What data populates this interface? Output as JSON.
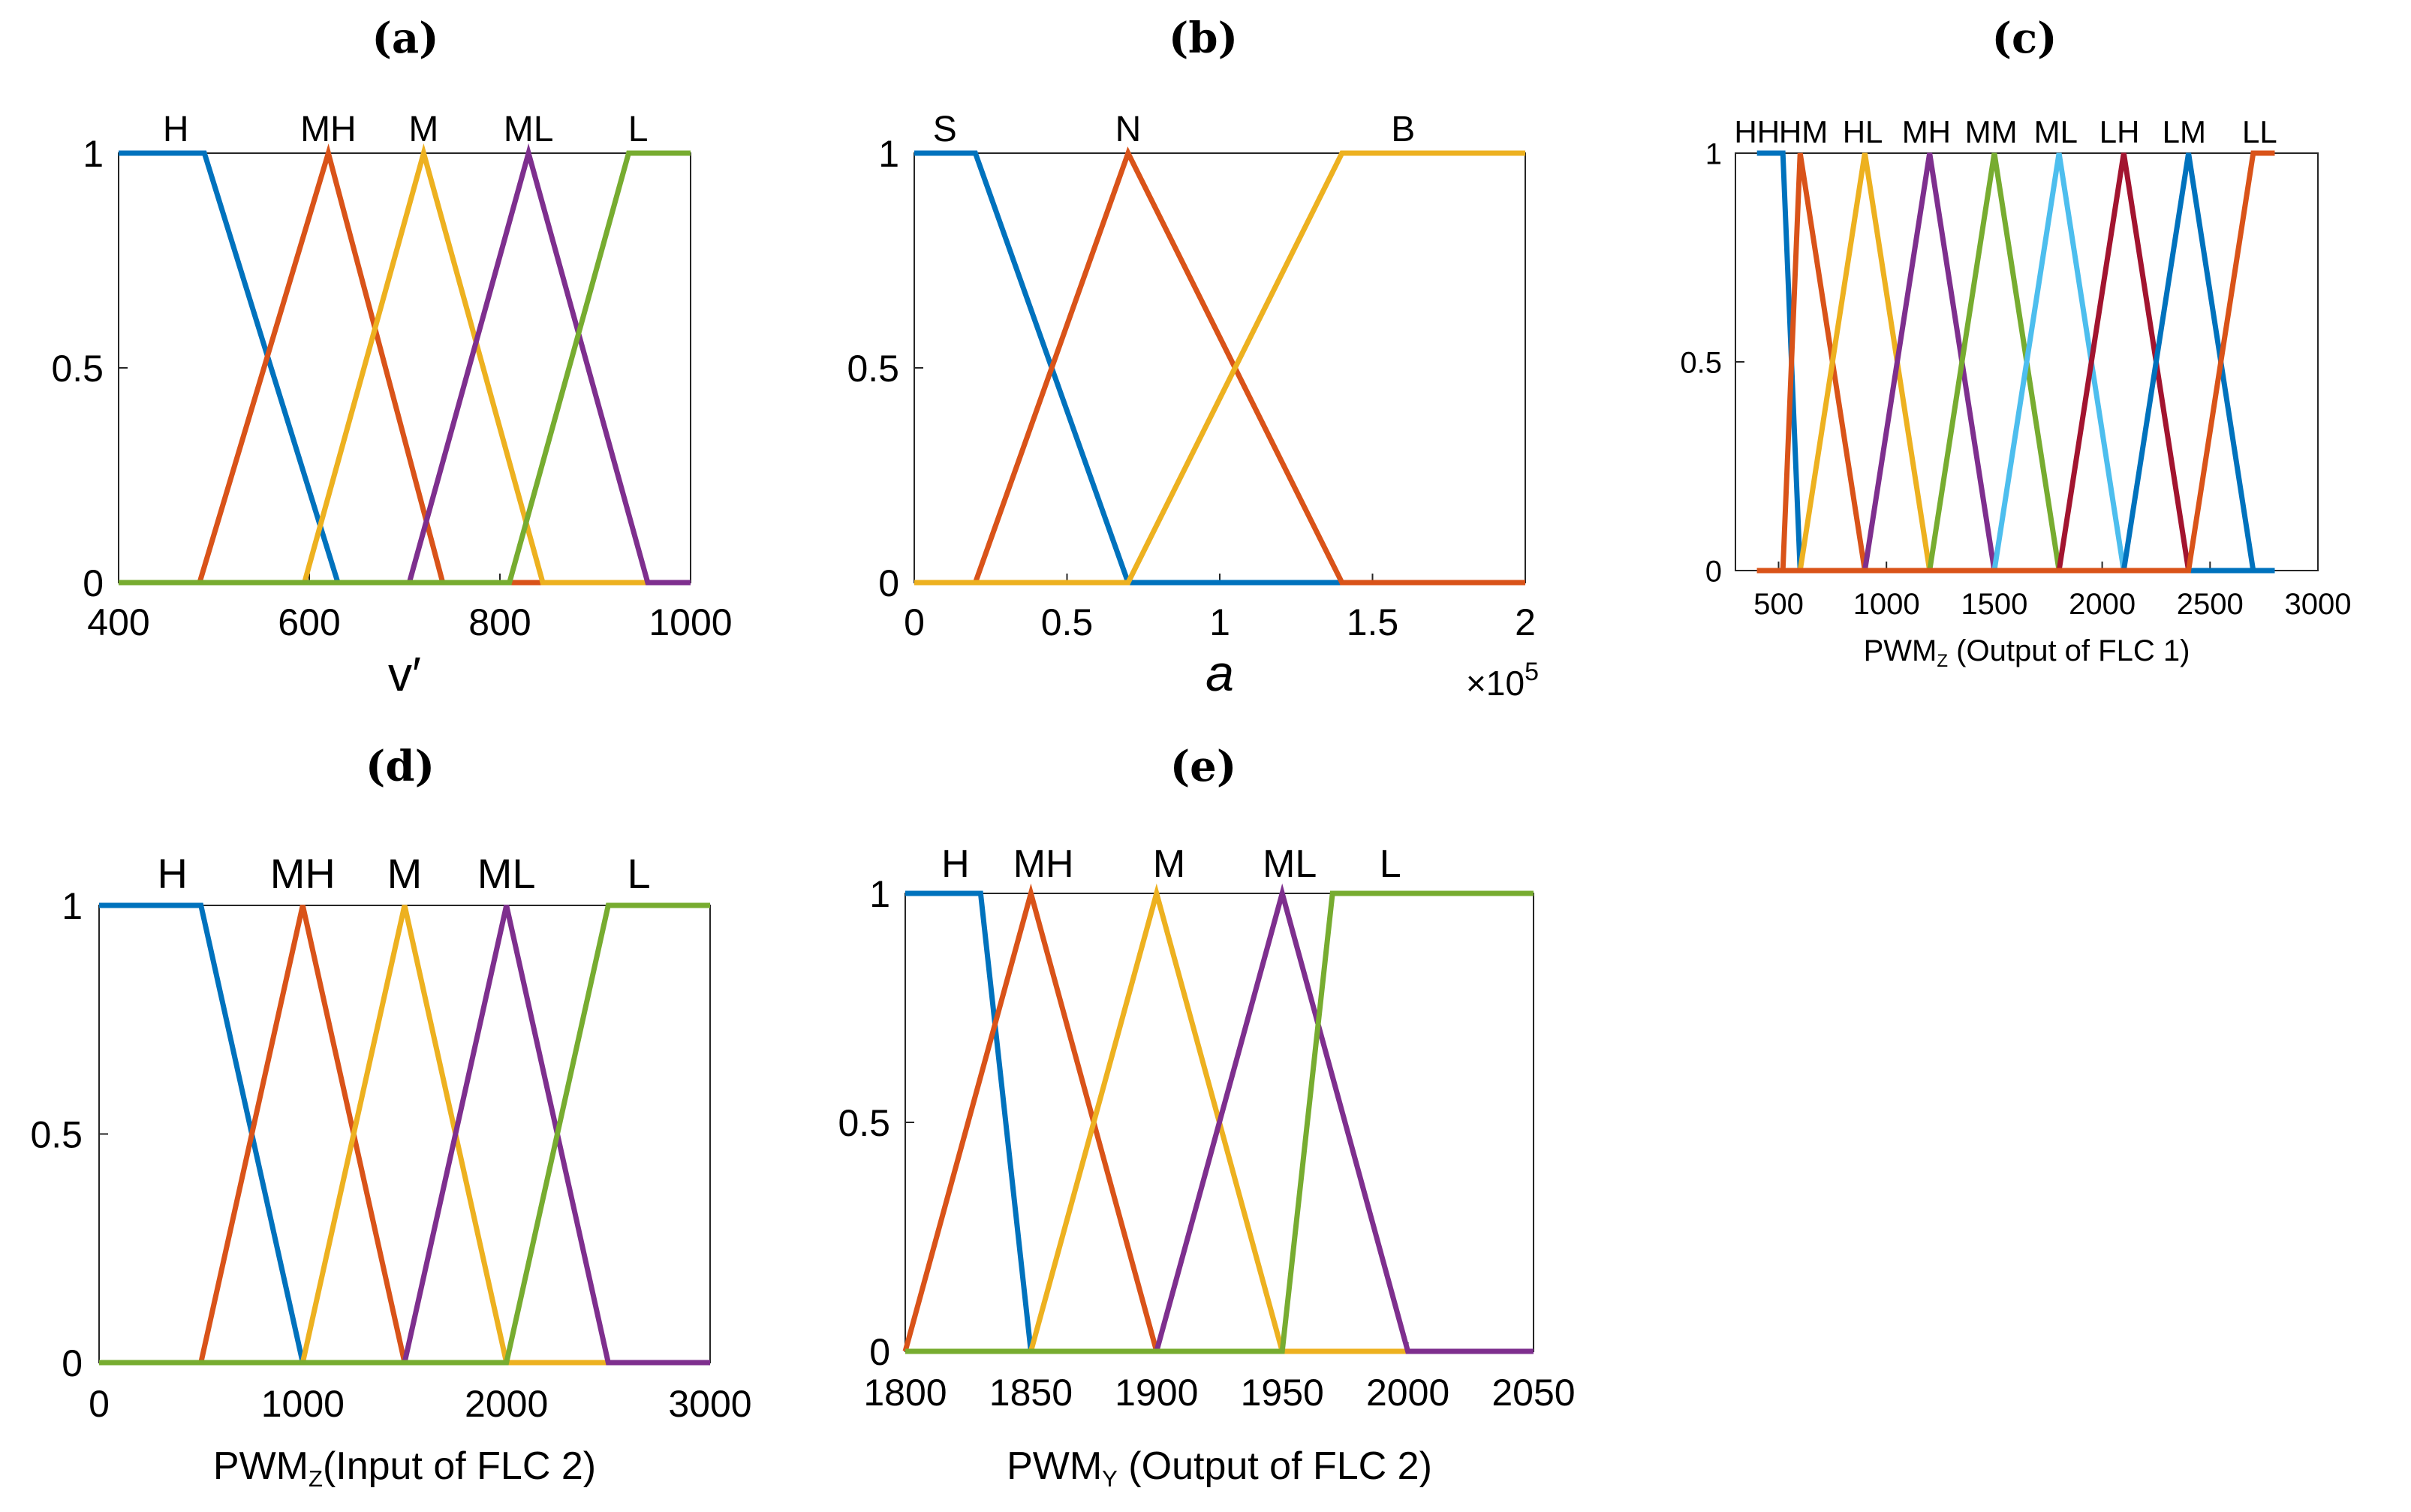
{
  "chart_data": [
    {
      "panel": "(a)",
      "type": "line",
      "title": "",
      "xlabel": "v′",
      "ylabel": "",
      "xlim": [
        400,
        1000
      ],
      "ylim": [
        0,
        1
      ],
      "xticks": [
        "400",
        "600",
        "800",
        "1000"
      ],
      "xtick_values": [
        400,
        600,
        800,
        1000
      ],
      "yticks": [
        "0",
        "0.5",
        "1"
      ],
      "ytick_values": [
        0,
        0.5,
        1
      ],
      "series": [
        {
          "name": "H",
          "color": "#0072BD",
          "x": [
            400,
            490,
            630,
            1000
          ],
          "y": [
            1,
            1,
            0,
            0
          ]
        },
        {
          "name": "MH",
          "color": "#D95319",
          "x": [
            400,
            485,
            620,
            740,
            1000
          ],
          "y": [
            0,
            0,
            1,
            0,
            0
          ]
        },
        {
          "name": "M",
          "color": "#EDB120",
          "x": [
            400,
            595,
            720,
            845,
            1000
          ],
          "y": [
            0,
            0,
            1,
            0,
            0
          ]
        },
        {
          "name": "ML",
          "color": "#7E2F8E",
          "x": [
            400,
            705,
            830,
            955,
            1000
          ],
          "y": [
            0,
            0,
            1,
            0,
            0
          ]
        },
        {
          "name": "L",
          "color": "#77AC30",
          "x": [
            400,
            810,
            935,
            1000
          ],
          "y": [
            0,
            0,
            1,
            1
          ]
        }
      ],
      "labels": [
        {
          "text": "H",
          "x": 460
        },
        {
          "text": "MH",
          "x": 620
        },
        {
          "text": "M",
          "x": 720
        },
        {
          "text": "ML",
          "x": 830
        },
        {
          "text": "L",
          "x": 945
        }
      ]
    },
    {
      "panel": "(b)",
      "type": "line",
      "title": "",
      "xlabel": "a",
      "ylabel": "",
      "exponent": "×10",
      "exponent_power": "5",
      "xlim": [
        0,
        2
      ],
      "ylim": [
        0,
        1
      ],
      "xticks": [
        "0",
        "0.5",
        "1",
        "1.5",
        "2"
      ],
      "xtick_values": [
        0,
        0.5,
        1,
        1.5,
        2
      ],
      "yticks": [
        "0",
        "0.5",
        "1"
      ],
      "ytick_values": [
        0,
        0.5,
        1
      ],
      "series": [
        {
          "name": "S",
          "color": "#0072BD",
          "x": [
            0,
            0.2,
            0.7,
            2
          ],
          "y": [
            1,
            1,
            0,
            0
          ]
        },
        {
          "name": "N",
          "color": "#D95319",
          "x": [
            0,
            0.2,
            0.7,
            1.4,
            2
          ],
          "y": [
            0,
            0,
            1,
            0,
            0
          ]
        },
        {
          "name": "B",
          "color": "#EDB120",
          "x": [
            0,
            0.7,
            1.4,
            2
          ],
          "y": [
            0,
            0,
            1,
            1
          ]
        }
      ],
      "labels": [
        {
          "text": "S",
          "x": 0.1
        },
        {
          "text": "N",
          "x": 0.7
        },
        {
          "text": "B",
          "x": 1.6
        }
      ]
    },
    {
      "panel": "(c)",
      "type": "line",
      "title": "",
      "xlabel": "PWM",
      "xlabel_sub": "Z",
      "xlabel_rest": " (Output of FLC 1)",
      "ylabel": "",
      "xlim": [
        300,
        3000
      ],
      "ylim": [
        0,
        1
      ],
      "xticks": [
        "500",
        "1000",
        "1500",
        "2000",
        "2500",
        "3000"
      ],
      "xtick_values": [
        500,
        1000,
        1500,
        2000,
        2500,
        3000
      ],
      "yticks": [
        "0",
        "0.5",
        "1"
      ],
      "ytick_values": [
        0,
        0.5,
        1
      ],
      "series": [
        {
          "name": "HH",
          "color": "#0072BD",
          "x": [
            400,
            500,
            520,
            600,
            2800
          ],
          "y": [
            1,
            1,
            1,
            0,
            0
          ]
        },
        {
          "name": "HM",
          "color": "#D95319",
          "x": [
            400,
            520,
            600,
            900
          ],
          "y": [
            0,
            0,
            1,
            0
          ]
        },
        {
          "name": "HL",
          "color": "#EDB120",
          "x": [
            600,
            900,
            1200
          ],
          "y": [
            0,
            1,
            0
          ]
        },
        {
          "name": "MH",
          "color": "#7E2F8E",
          "x": [
            900,
            1200,
            1500
          ],
          "y": [
            0,
            1,
            0
          ]
        },
        {
          "name": "MM",
          "color": "#77AC30",
          "x": [
            1200,
            1500,
            1800
          ],
          "y": [
            0,
            1,
            0
          ]
        },
        {
          "name": "ML",
          "color": "#4DBEEE",
          "x": [
            1500,
            1800,
            2100
          ],
          "y": [
            0,
            1,
            0
          ]
        },
        {
          "name": "LH",
          "color": "#A2142F",
          "x": [
            1800,
            2100,
            2400
          ],
          "y": [
            0,
            1,
            0
          ]
        },
        {
          "name": "LM",
          "color": "#0072BD",
          "x": [
            2100,
            2400,
            2700
          ],
          "y": [
            0,
            1,
            0
          ]
        },
        {
          "name": "LL",
          "color": "#D95319",
          "x": [
            400,
            2400,
            2700,
            2800
          ],
          "y": [
            0,
            0,
            1,
            1
          ]
        }
      ],
      "labels": [
        {
          "text": "HH",
          "x": 400
        },
        {
          "text": "HM",
          "x": 615
        },
        {
          "text": "HL",
          "x": 890
        },
        {
          "text": "MH",
          "x": 1185
        },
        {
          "text": "MM",
          "x": 1485
        },
        {
          "text": "ML",
          "x": 1785
        },
        {
          "text": "LH",
          "x": 2080
        },
        {
          "text": "LM",
          "x": 2380
        },
        {
          "text": "LL",
          "x": 2730
        }
      ]
    },
    {
      "panel": "(d)",
      "type": "line",
      "title": "",
      "xlabel": "PWM",
      "xlabel_sub": "Z",
      "xlabel_rest": "(Input of FLC 2)",
      "ylabel": "",
      "xlim": [
        0,
        3000
      ],
      "ylim": [
        0,
        1
      ],
      "xticks": [
        "0",
        "1000",
        "2000",
        "3000"
      ],
      "xtick_values": [
        0,
        1000,
        2000,
        3000
      ],
      "yticks": [
        "0",
        "0.5",
        "1"
      ],
      "ytick_values": [
        0,
        0.5,
        1
      ],
      "series": [
        {
          "name": "H",
          "color": "#0072BD",
          "x": [
            0,
            500,
            1000,
            3000
          ],
          "y": [
            1,
            1,
            0,
            0
          ]
        },
        {
          "name": "MH",
          "color": "#D95319",
          "x": [
            0,
            500,
            1000,
            1500,
            3000
          ],
          "y": [
            0,
            0,
            1,
            0,
            0
          ]
        },
        {
          "name": "M",
          "color": "#EDB120",
          "x": [
            0,
            1000,
            1500,
            2000,
            3000
          ],
          "y": [
            0,
            0,
            1,
            0,
            0
          ]
        },
        {
          "name": "ML",
          "color": "#7E2F8E",
          "x": [
            0,
            1500,
            2000,
            2500,
            3000
          ],
          "y": [
            0,
            0,
            1,
            0,
            0
          ]
        },
        {
          "name": "L",
          "color": "#77AC30",
          "x": [
            0,
            2000,
            2500,
            3000
          ],
          "y": [
            0,
            0,
            1,
            1
          ]
        }
      ],
      "labels": [
        {
          "text": "H",
          "x": 360
        },
        {
          "text": "MH",
          "x": 1000
        },
        {
          "text": "M",
          "x": 1500
        },
        {
          "text": "ML",
          "x": 2000
        },
        {
          "text": "L",
          "x": 2650
        }
      ]
    },
    {
      "panel": "(e)",
      "type": "line",
      "title": "",
      "xlabel": "PWM",
      "xlabel_sub": "Y",
      "xlabel_rest": " (Output of FLC 2)",
      "ylabel": "",
      "xlim": [
        1800,
        2050
      ],
      "ylim": [
        0,
        1
      ],
      "xticks": [
        "1800",
        "1850",
        "1900",
        "1950",
        "2000",
        "2050"
      ],
      "xtick_values": [
        1800,
        1850,
        1900,
        1950,
        2000,
        2050
      ],
      "yticks": [
        "0",
        "0.5",
        "1"
      ],
      "ytick_values": [
        0,
        0.5,
        1
      ],
      "series": [
        {
          "name": "H",
          "color": "#0072BD",
          "x": [
            1800,
            1830,
            1850,
            2050
          ],
          "y": [
            1,
            1,
            0,
            0
          ]
        },
        {
          "name": "MH",
          "color": "#D95319",
          "x": [
            1800,
            1850,
            1900,
            2050
          ],
          "y": [
            0,
            1,
            0,
            0
          ]
        },
        {
          "name": "M",
          "color": "#EDB120",
          "x": [
            1800,
            1850,
            1900,
            1950,
            2050
          ],
          "y": [
            0,
            0,
            1,
            0,
            0
          ]
        },
        {
          "name": "ML",
          "color": "#7E2F8E",
          "x": [
            1800,
            1900,
            1950,
            2000,
            2050
          ],
          "y": [
            0,
            0,
            1,
            0,
            0
          ]
        },
        {
          "name": "L",
          "color": "#77AC30",
          "x": [
            1800,
            1950,
            1970,
            2050
          ],
          "y": [
            0,
            0,
            1,
            1
          ]
        }
      ],
      "labels": [
        {
          "text": "H",
          "x": 1820
        },
        {
          "text": "MH",
          "x": 1855
        },
        {
          "text": "M",
          "x": 1905
        },
        {
          "text": "ML",
          "x": 1953
        },
        {
          "text": "L",
          "x": 1993
        }
      ]
    }
  ]
}
